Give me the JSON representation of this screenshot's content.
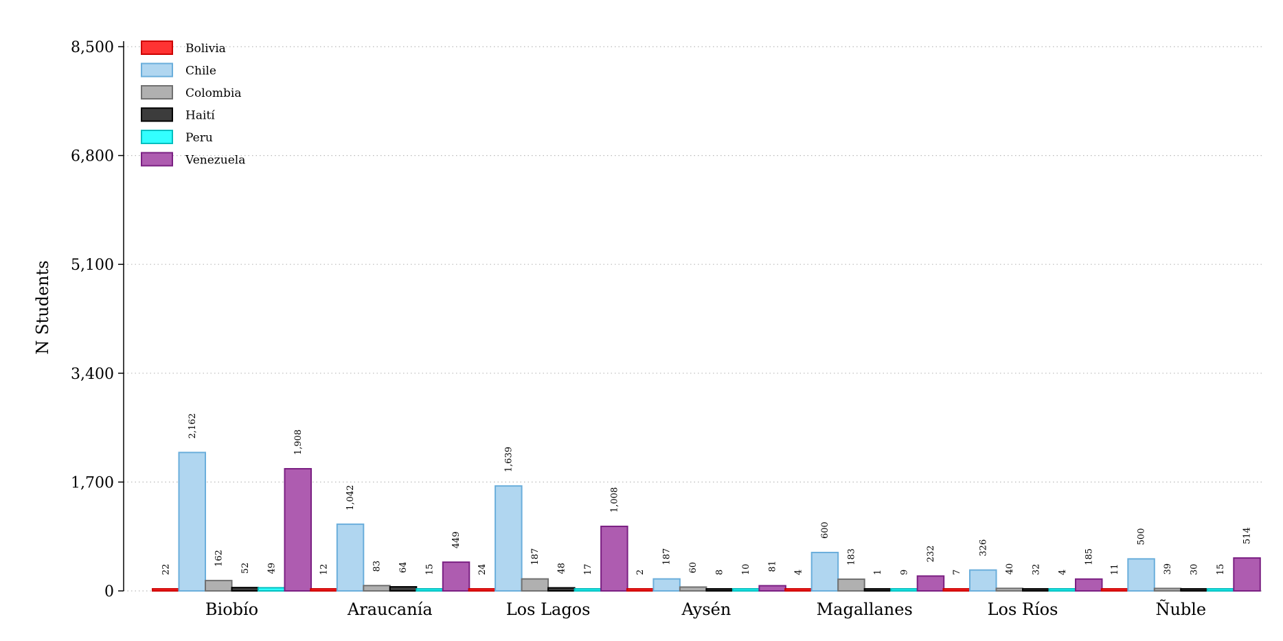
{
  "chart_data": {
    "type": "bar",
    "ylabel": "N Students",
    "xlabel": "",
    "ylim": [
      0,
      8500
    ],
    "yticks": [
      0,
      1700,
      3400,
      5100,
      6800,
      8500
    ],
    "ytick_labels": [
      "0",
      "1,700",
      "3,400",
      "5,100",
      "6,800",
      "8,500"
    ],
    "categories": [
      "Biobío",
      "Araucanía",
      "Los Lagos",
      "Aysén",
      "Magallanes",
      "Los Ríos",
      "Ñuble"
    ],
    "grid": "horizontal-dotted",
    "legend_position": "top-left",
    "series": [
      {
        "name": "Bolivia",
        "fill": "#ff3333",
        "stroke": "#cc0000",
        "values": [
          22,
          12,
          24,
          2,
          4,
          7,
          11
        ],
        "labels": [
          "22",
          "12",
          "24",
          "2",
          "4",
          "7",
          "11"
        ]
      },
      {
        "name": "Chile",
        "fill": "#b0d6f0",
        "stroke": "#6aaedb",
        "values": [
          2162,
          1042,
          1639,
          187,
          600,
          326,
          500
        ],
        "labels": [
          "2,162",
          "1,042",
          "1,639",
          "187",
          "600",
          "326",
          "500"
        ]
      },
      {
        "name": "Colombia",
        "fill": "#b0b0b0",
        "stroke": "#707070",
        "values": [
          162,
          83,
          187,
          60,
          183,
          40,
          39
        ],
        "labels": [
          "162",
          "83",
          "187",
          "60",
          "183",
          "40",
          "39"
        ]
      },
      {
        "name": "Haití",
        "fill": "#3c3c3c",
        "stroke": "#000000",
        "values": [
          52,
          64,
          48,
          8,
          1,
          32,
          30
        ],
        "labels": [
          "52",
          "64",
          "48",
          "8",
          "1",
          "32",
          "30"
        ]
      },
      {
        "name": "Peru",
        "fill": "#33ffff",
        "stroke": "#00bfbf",
        "values": [
          49,
          15,
          17,
          10,
          9,
          4,
          15
        ],
        "labels": [
          "49",
          "15",
          "17",
          "10",
          "9",
          "4",
          "15"
        ]
      },
      {
        "name": "Venezuela",
        "fill": "#ae5cb0",
        "stroke": "#7a1f82",
        "values": [
          1908,
          449,
          1008,
          81,
          232,
          185,
          514
        ],
        "labels": [
          "1,908",
          "449",
          "1,008",
          "81",
          "232",
          "185",
          "514"
        ]
      }
    ]
  }
}
